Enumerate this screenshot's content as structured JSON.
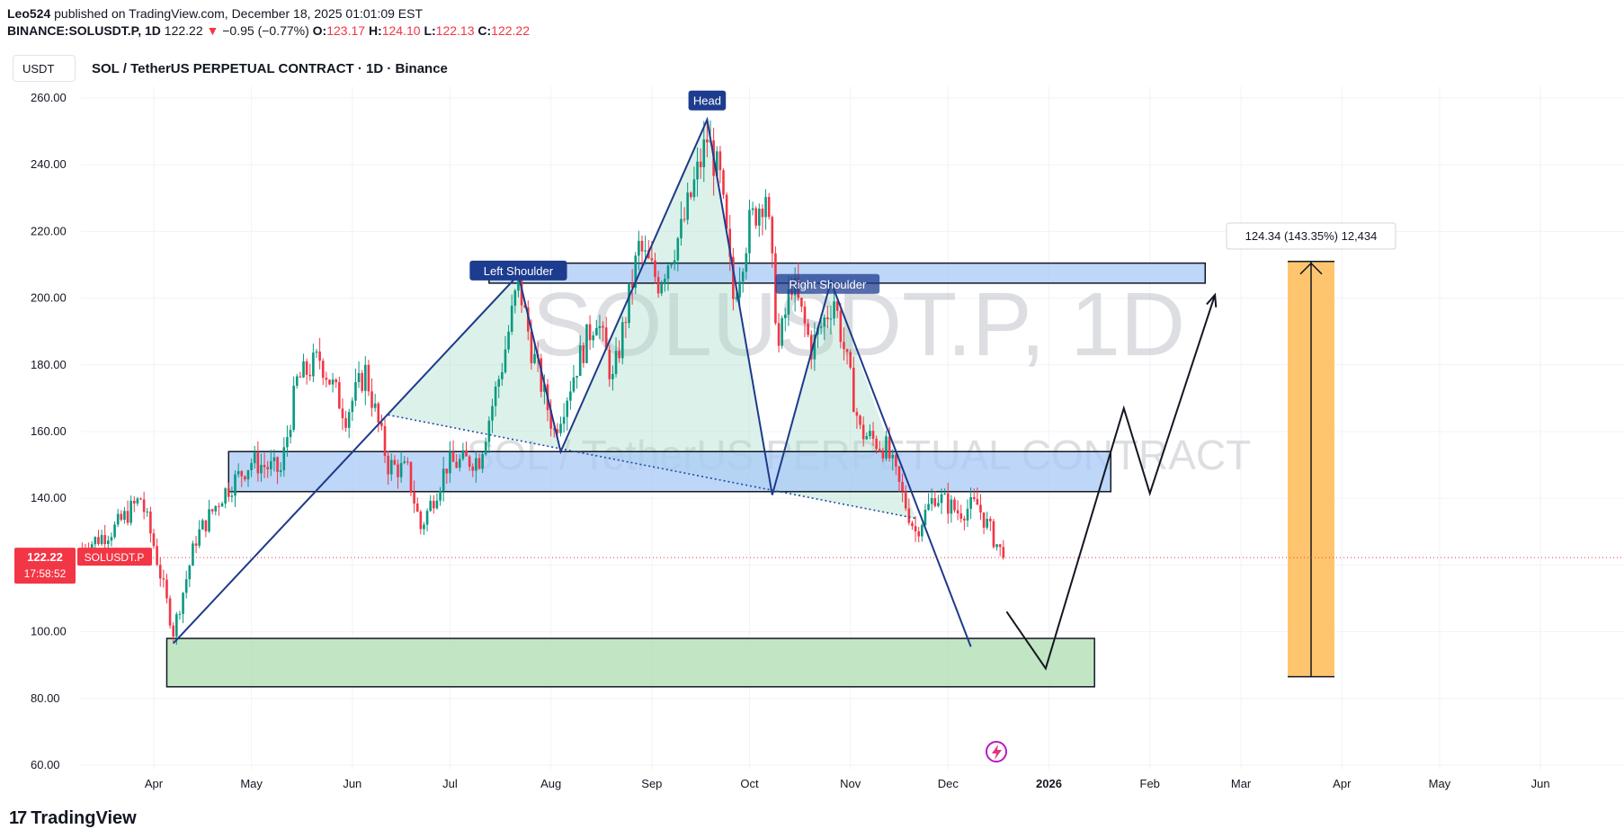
{
  "header": {
    "publisher": "Leo524",
    "published_text": "published on TradingView.com, December 18, 2025 01:01:09 EST",
    "symbol_line_prefix": "BINANCE:SOLUSDT.P, 1D",
    "last": "122.22",
    "change": "−0.95 (−0.77%)",
    "o_label": "O:",
    "o": "123.17",
    "h_label": "H:",
    "h": "124.10",
    "l_label": "L:",
    "l": "122.13",
    "c_label": "C:",
    "c": "122.22"
  },
  "toolbar": {
    "unit": "USDT"
  },
  "symbol_title": "SOL / TetherUS PERPETUAL CONTRACT · 1D · Binance",
  "watermark": {
    "main": "SOLUSDT.P, 1D",
    "sub": "SOL / TetherUS PERPETUAL CONTRACT"
  },
  "price_badge": {
    "price": "122.22",
    "countdown": "17:58:52",
    "symbol": "SOLUSDT.P"
  },
  "footer": {
    "brand": "TradingView",
    "mark": "17"
  },
  "colors": {
    "up": "#089981",
    "down": "#f23645",
    "pattern_line": "#1e3a8a",
    "zone_blue": "#a8c8f5",
    "zone_green": "#b7e1b9",
    "target_bar": "#ffc56e"
  },
  "chart_data": {
    "type": "candlestick",
    "ylim": [
      60,
      265
    ],
    "y_ticks": [
      "260.00",
      "240.00",
      "220.00",
      "200.00",
      "180.00",
      "160.00",
      "140.00",
      "120.00",
      "100.00",
      "80.00",
      "60.00"
    ],
    "y_tick_values": [
      260,
      240,
      220,
      200,
      180,
      160,
      140,
      120,
      100,
      80,
      60
    ],
    "x_ticks": [
      "Apr",
      "May",
      "Jun",
      "Jul",
      "Aug",
      "Sep",
      "Oct",
      "Nov",
      "Dec",
      "2026",
      "Feb",
      "Mar",
      "Apr",
      "May",
      "Jun"
    ],
    "x_tick_dates": [
      "2025-04-01",
      "2025-05-01",
      "2025-06-01",
      "2025-07-01",
      "2025-08-01",
      "2025-09-01",
      "2025-10-01",
      "2025-11-01",
      "2025-12-01",
      "2026-01-01",
      "2026-02-01",
      "2026-03-01",
      "2026-04-01",
      "2026-05-01",
      "2026-06-01"
    ],
    "last_price": 122.22,
    "price_path": [
      [
        "2025-03-10",
        125
      ],
      [
        "2025-03-20",
        131
      ],
      [
        "2025-03-28",
        140
      ],
      [
        "2025-04-01",
        126
      ],
      [
        "2025-04-07",
        100
      ],
      [
        "2025-04-14",
        128
      ],
      [
        "2025-04-22",
        141
      ],
      [
        "2025-05-01",
        151
      ],
      [
        "2025-05-10",
        148
      ],
      [
        "2025-05-15",
        175
      ],
      [
        "2025-05-22",
        182
      ],
      [
        "2025-05-30",
        165
      ],
      [
        "2025-06-05",
        178
      ],
      [
        "2025-06-12",
        150
      ],
      [
        "2025-06-18",
        148
      ],
      [
        "2025-06-22",
        131
      ],
      [
        "2025-06-30",
        150
      ],
      [
        "2025-07-10",
        152
      ],
      [
        "2025-07-17",
        180
      ],
      [
        "2025-07-22",
        205
      ],
      [
        "2025-07-26",
        185
      ],
      [
        "2025-08-02",
        160
      ],
      [
        "2025-08-09",
        180
      ],
      [
        "2025-08-15",
        195
      ],
      [
        "2025-08-20",
        175
      ],
      [
        "2025-08-28",
        215
      ],
      [
        "2025-09-03",
        205
      ],
      [
        "2025-09-10",
        220
      ],
      [
        "2025-09-18",
        248
      ],
      [
        "2025-09-22",
        235
      ],
      [
        "2025-09-26",
        200
      ],
      [
        "2025-10-01",
        222
      ],
      [
        "2025-10-06",
        232
      ],
      [
        "2025-10-10",
        185
      ],
      [
        "2025-10-14",
        205
      ],
      [
        "2025-10-20",
        185
      ],
      [
        "2025-10-27",
        200
      ],
      [
        "2025-11-04",
        160
      ],
      [
        "2025-11-12",
        155
      ],
      [
        "2025-11-18",
        138
      ],
      [
        "2025-11-21",
        130
      ],
      [
        "2025-11-27",
        141
      ],
      [
        "2025-12-04",
        136
      ],
      [
        "2025-12-10",
        138
      ],
      [
        "2025-12-18",
        122.22
      ]
    ],
    "annotations": [
      {
        "type": "label",
        "text": "Left Shoulder",
        "date": "2025-07-22",
        "price": 208
      },
      {
        "type": "label",
        "text": "Head",
        "date": "2025-09-18",
        "price": 259
      },
      {
        "type": "label",
        "text": "Right Shoulder",
        "date": "2025-10-25",
        "price": 204
      },
      {
        "type": "measure",
        "text": "124.34 (143.35%) 12,434",
        "from": 86.5,
        "to": 211
      }
    ],
    "zones": [
      {
        "name": "resistance",
        "from_date": "2025-07-13",
        "to_date": "2026-02-18",
        "low": 204.5,
        "high": 210.5
      },
      {
        "name": "neckline",
        "from_date": "2025-04-24",
        "to_date": "2026-01-20",
        "low": 142,
        "high": 154
      },
      {
        "name": "support",
        "from_date": "2025-04-05",
        "to_date": "2026-01-15",
        "low": 83.5,
        "high": 98
      }
    ],
    "pattern_path": [
      [
        "2025-04-07",
        96.5
      ],
      [
        "2025-07-22",
        207
      ],
      [
        "2025-08-04",
        154
      ],
      [
        "2025-09-18",
        253.5
      ],
      [
        "2025-10-08",
        141
      ],
      [
        "2025-10-26",
        205
      ],
      [
        "2025-12-08",
        95.5
      ]
    ],
    "projection_path": [
      [
        "2025-12-19",
        106
      ],
      [
        "2025-12-31",
        89
      ],
      [
        "2026-01-24",
        167
      ],
      [
        "2026-02-01",
        141.5
      ],
      [
        "2026-02-21",
        201
      ]
    ],
    "dotted_neckline": [
      [
        "2025-06-12",
        165
      ],
      [
        "2025-11-21",
        134
      ]
    ]
  }
}
